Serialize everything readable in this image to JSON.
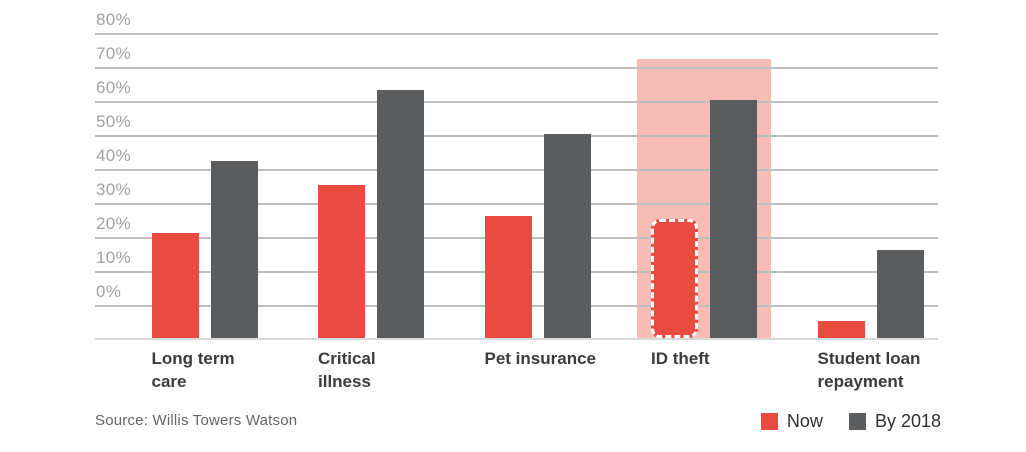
{
  "chart_data": {
    "type": "bar",
    "title": "",
    "categories": [
      "Long term care",
      "Critical illness",
      "Pet insurance",
      "ID theft",
      "Student loan repayment"
    ],
    "category_label_lines": [
      [
        "Long term",
        "care"
      ],
      [
        "Critical",
        "illness"
      ],
      [
        "Pet insurance"
      ],
      [
        "ID theft"
      ],
      [
        "Student loan",
        "repayment"
      ]
    ],
    "series": [
      {
        "name": "Now",
        "color": "#e94b40",
        "values": [
          31,
          45,
          36,
          35,
          5
        ]
      },
      {
        "name": "By 2018",
        "color": "#5b5c5e",
        "values": [
          52,
          73,
          60,
          70,
          26
        ]
      }
    ],
    "y_tick_labels": [
      "80%",
      "70%",
      "60%",
      "50%",
      "40%",
      "30%",
      "20%",
      "10%",
      "0%"
    ],
    "ylim": [
      0,
      80
    ],
    "grid": true,
    "legend_position": "bottom-right",
    "highlight": {
      "category": "ID theft",
      "band_color": "#f7bcb6",
      "band_top_percent": 82,
      "now_bar_outline": "white-dashed"
    }
  },
  "source": {
    "label": "Source: Willis Towers Watson"
  },
  "colors": {
    "grid_line": "#bcbec0",
    "axis_line": "#d8d9da",
    "tick_label": "#a0a2a5",
    "category_label": "#3b3b3d",
    "legend_label": "#2f2f31",
    "source_label": "#636569",
    "background": "#ffffff"
  }
}
